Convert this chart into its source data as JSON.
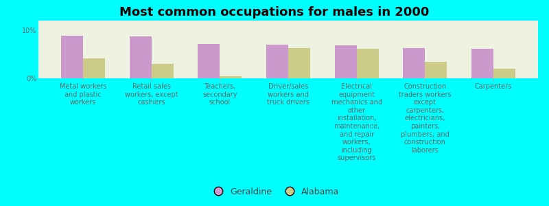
{
  "title": "Most common occupations for males in 2000",
  "background_color": "#00FFFF",
  "plot_background_color": "#EEF2E0",
  "categories": [
    "Metal workers\nand plastic\nworkers",
    "Retail sales\nworkers, except\ncashiers",
    "Teachers,\nsecondary\nschool",
    "Driver/sales\nworkers and\ntruck drivers",
    "Electrical\nequipment\nmechanics and\nother\ninstallation,\nmaintenance,\nand repair\nworkers,\nincluding\nsupervisors",
    "Construction\ntraders workers\nexcept\ncarpenters,\nelectricians,\npainters,\nplumbers, and\nconstruction\nlaborers",
    "Carpenters"
  ],
  "geraldine_values": [
    8.8,
    8.7,
    7.2,
    7.0,
    6.8,
    6.3,
    6.2
  ],
  "alabama_values": [
    4.2,
    3.0,
    0.5,
    6.3,
    6.2,
    3.5,
    2.0
  ],
  "geraldine_color": "#CC99CC",
  "alabama_color": "#CCCC88",
  "ylim_max": 12,
  "yticks": [
    0,
    10
  ],
  "ytick_labels": [
    "0%",
    "10%"
  ],
  "legend_geraldine": "Geraldine",
  "legend_alabama": "Alabama",
  "bar_width": 0.32,
  "title_fontsize": 13,
  "tick_fontsize": 7,
  "legend_fontsize": 9
}
